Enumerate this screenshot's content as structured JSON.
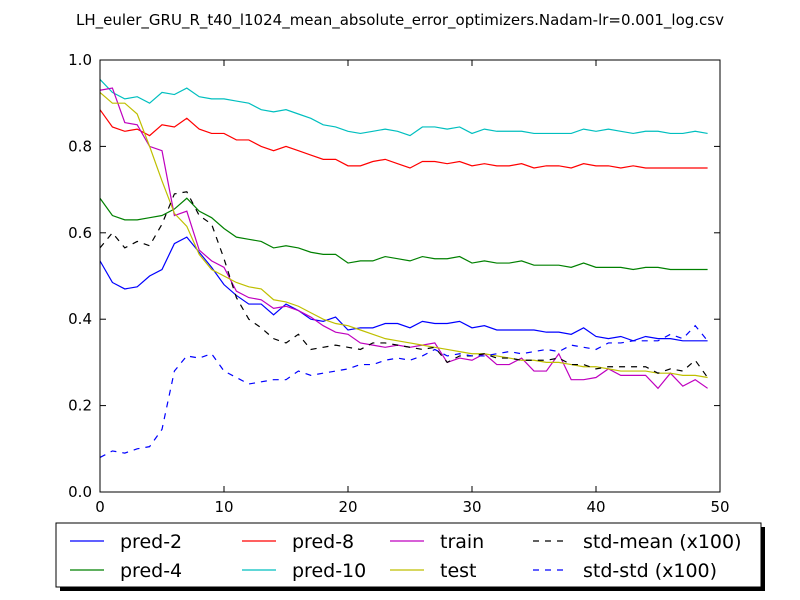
{
  "chart_data": {
    "type": "line",
    "title": "LH_euler_GRU_R_t40_l1024_mean_absolute_error_optimizers.Nadam-lr=0.001_log.csv",
    "xlabel": "",
    "ylabel": "",
    "xlim": [
      0,
      50
    ],
    "ylim": [
      0.0,
      1.0
    ],
    "xticks": [
      "0",
      "10",
      "20",
      "30",
      "40",
      "50"
    ],
    "yticks": [
      "0.0",
      "0.2",
      "0.4",
      "0.6",
      "0.8",
      "1.0"
    ],
    "grid": false,
    "legend_position": "bottom-center, below axes",
    "x": [
      0,
      1,
      2,
      3,
      4,
      5,
      6,
      7,
      8,
      9,
      10,
      11,
      12,
      13,
      14,
      15,
      16,
      17,
      18,
      19,
      20,
      21,
      22,
      23,
      24,
      25,
      26,
      27,
      28,
      29,
      30,
      31,
      32,
      33,
      34,
      35,
      36,
      37,
      38,
      39,
      40,
      41,
      42,
      43,
      44,
      45,
      46,
      47,
      48,
      49
    ],
    "series": [
      {
        "name": "pred-2",
        "color": "#0000ff",
        "dash": "solid",
        "values": [
          0.535,
          0.485,
          0.47,
          0.475,
          0.5,
          0.515,
          0.575,
          0.59,
          0.555,
          0.52,
          0.48,
          0.455,
          0.435,
          0.435,
          0.41,
          0.435,
          0.42,
          0.4,
          0.395,
          0.405,
          0.375,
          0.38,
          0.38,
          0.39,
          0.39,
          0.38,
          0.395,
          0.39,
          0.39,
          0.395,
          0.38,
          0.385,
          0.375,
          0.375,
          0.375,
          0.375,
          0.37,
          0.37,
          0.365,
          0.38,
          0.36,
          0.355,
          0.36,
          0.35,
          0.36,
          0.355,
          0.355,
          0.35,
          0.35,
          0.35
        ]
      },
      {
        "name": "pred-4",
        "color": "#008000",
        "dash": "solid",
        "values": [
          0.68,
          0.64,
          0.63,
          0.63,
          0.635,
          0.64,
          0.655,
          0.68,
          0.65,
          0.635,
          0.61,
          0.59,
          0.585,
          0.58,
          0.565,
          0.57,
          0.565,
          0.555,
          0.55,
          0.55,
          0.53,
          0.535,
          0.535,
          0.545,
          0.54,
          0.535,
          0.545,
          0.54,
          0.54,
          0.545,
          0.53,
          0.535,
          0.53,
          0.53,
          0.535,
          0.525,
          0.525,
          0.525,
          0.52,
          0.53,
          0.52,
          0.52,
          0.52,
          0.515,
          0.52,
          0.52,
          0.515,
          0.515,
          0.515,
          0.515
        ]
      },
      {
        "name": "pred-8",
        "color": "#ff0000",
        "dash": "solid",
        "values": [
          0.885,
          0.845,
          0.835,
          0.84,
          0.825,
          0.85,
          0.845,
          0.865,
          0.84,
          0.83,
          0.83,
          0.815,
          0.815,
          0.8,
          0.79,
          0.8,
          0.79,
          0.78,
          0.77,
          0.77,
          0.755,
          0.755,
          0.765,
          0.77,
          0.76,
          0.75,
          0.765,
          0.765,
          0.76,
          0.765,
          0.755,
          0.76,
          0.755,
          0.755,
          0.76,
          0.75,
          0.755,
          0.755,
          0.75,
          0.76,
          0.755,
          0.755,
          0.75,
          0.755,
          0.75,
          0.75,
          0.75,
          0.75,
          0.75,
          0.75
        ]
      },
      {
        "name": "pred-10",
        "color": "#00bfbf",
        "dash": "solid",
        "values": [
          0.955,
          0.925,
          0.91,
          0.915,
          0.9,
          0.925,
          0.92,
          0.935,
          0.915,
          0.91,
          0.91,
          0.905,
          0.9,
          0.885,
          0.88,
          0.885,
          0.875,
          0.865,
          0.85,
          0.845,
          0.835,
          0.83,
          0.835,
          0.84,
          0.835,
          0.825,
          0.845,
          0.845,
          0.84,
          0.845,
          0.83,
          0.84,
          0.835,
          0.835,
          0.835,
          0.83,
          0.83,
          0.83,
          0.83,
          0.84,
          0.835,
          0.84,
          0.835,
          0.83,
          0.835,
          0.835,
          0.83,
          0.83,
          0.835,
          0.83
        ]
      },
      {
        "name": "train",
        "color": "#bf00bf",
        "dash": "solid",
        "values": [
          0.93,
          0.935,
          0.855,
          0.85,
          0.8,
          0.79,
          0.64,
          0.65,
          0.56,
          0.535,
          0.52,
          0.465,
          0.45,
          0.445,
          0.425,
          0.43,
          0.42,
          0.405,
          0.385,
          0.37,
          0.365,
          0.345,
          0.34,
          0.335,
          0.34,
          0.335,
          0.34,
          0.345,
          0.3,
          0.31,
          0.305,
          0.32,
          0.295,
          0.295,
          0.31,
          0.28,
          0.28,
          0.32,
          0.26,
          0.26,
          0.265,
          0.285,
          0.27,
          0.27,
          0.27,
          0.24,
          0.275,
          0.245,
          0.26,
          0.24
        ]
      },
      {
        "name": "test",
        "color": "#bfbf00",
        "dash": "solid",
        "values": [
          0.925,
          0.9,
          0.9,
          0.875,
          0.8,
          0.72,
          0.645,
          0.615,
          0.55,
          0.515,
          0.5,
          0.485,
          0.475,
          0.47,
          0.445,
          0.44,
          0.43,
          0.415,
          0.4,
          0.39,
          0.385,
          0.375,
          0.365,
          0.355,
          0.35,
          0.345,
          0.34,
          0.335,
          0.33,
          0.325,
          0.32,
          0.32,
          0.315,
          0.31,
          0.305,
          0.305,
          0.3,
          0.3,
          0.295,
          0.29,
          0.29,
          0.285,
          0.28,
          0.28,
          0.28,
          0.275,
          0.275,
          0.27,
          0.27,
          0.265
        ]
      },
      {
        "name": "std-mean (x100)",
        "color": "#000000",
        "dash": "dashed",
        "values": [
          0.565,
          0.6,
          0.565,
          0.58,
          0.57,
          0.62,
          0.69,
          0.695,
          0.64,
          0.62,
          0.54,
          0.45,
          0.4,
          0.38,
          0.355,
          0.345,
          0.365,
          0.33,
          0.335,
          0.34,
          0.335,
          0.33,
          0.345,
          0.345,
          0.34,
          0.335,
          0.33,
          0.335,
          0.3,
          0.315,
          0.315,
          0.32,
          0.31,
          0.31,
          0.305,
          0.305,
          0.305,
          0.31,
          0.295,
          0.295,
          0.285,
          0.29,
          0.29,
          0.29,
          0.29,
          0.275,
          0.285,
          0.28,
          0.305,
          0.265
        ]
      },
      {
        "name": "std-std (x100)",
        "color": "#0000ff",
        "dash": "dashed",
        "values": [
          0.08,
          0.095,
          0.09,
          0.1,
          0.105,
          0.145,
          0.28,
          0.315,
          0.31,
          0.32,
          0.28,
          0.265,
          0.25,
          0.255,
          0.26,
          0.26,
          0.28,
          0.27,
          0.275,
          0.28,
          0.285,
          0.295,
          0.295,
          0.305,
          0.31,
          0.305,
          0.315,
          0.33,
          0.315,
          0.32,
          0.315,
          0.315,
          0.32,
          0.325,
          0.32,
          0.325,
          0.33,
          0.325,
          0.34,
          0.335,
          0.33,
          0.345,
          0.345,
          0.35,
          0.35,
          0.35,
          0.365,
          0.355,
          0.385,
          0.35
        ]
      }
    ]
  }
}
